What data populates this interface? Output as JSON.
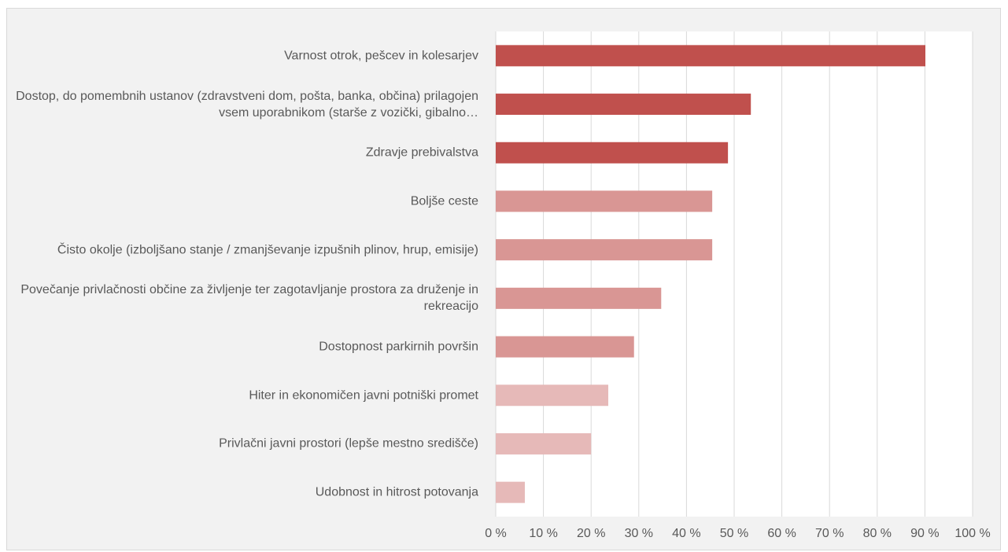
{
  "chart_data": {
    "type": "barh",
    "categories": [
      "Varnost otrok, pešcev in kolesarjev",
      "Dostop, do pomembnih ustanov (zdravstveni dom, pošta, banka, občina) prilagojen vsem uporabnikom (starše z vozički, gibalno…",
      "Zdravje prebivalstva",
      "Boljše ceste",
      "Čisto okolje (izboljšano stanje / zmanjševanje izpušnih plinov, hrup, emisije)",
      "Povečanje privlačnosti občine za življenje ter zagotavljanje prostora za druženje in rekreacijo",
      "Dostopnost parkirnih površin",
      "Hiter in ekonomičen javni potniški promet",
      "Privlačni javni prostori (lepše mestno središče)",
      "Udobnost in hitrost potovanja"
    ],
    "values": [
      90.1,
      53.5,
      48.7,
      45.4,
      45.4,
      34.7,
      29.0,
      23.6,
      20.0,
      6.1
    ],
    "colors": [
      "#c0504d",
      "#c0504d",
      "#c0504d",
      "#d99694",
      "#d99694",
      "#d99694",
      "#d99694",
      "#e6b9b8",
      "#e6b9b8",
      "#e6b9b8"
    ],
    "xlim": [
      0,
      100
    ],
    "xticks": [
      {
        "value": 0,
        "label": "0 %"
      },
      {
        "value": 10,
        "label": "10 %"
      },
      {
        "value": 20,
        "label": "20 %"
      },
      {
        "value": 30,
        "label": "30 %"
      },
      {
        "value": 40,
        "label": "40 %"
      },
      {
        "value": 50,
        "label": "50 %"
      },
      {
        "value": 60,
        "label": "60 %"
      },
      {
        "value": 70,
        "label": "70 %"
      },
      {
        "value": 80,
        "label": "80 %"
      },
      {
        "value": 90,
        "label": "90 %"
      },
      {
        "value": 100,
        "label": "100 %"
      }
    ],
    "grid": true
  }
}
